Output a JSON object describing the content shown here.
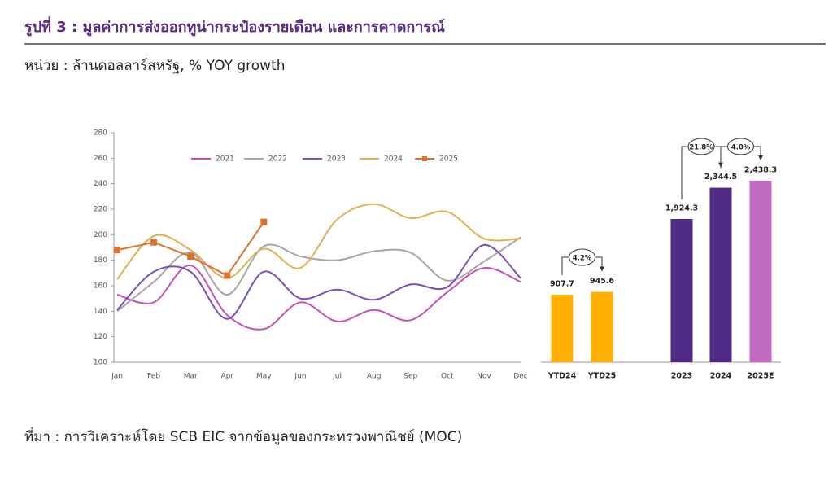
{
  "title": "รูปที่ 3 : มูลค่าการส่งออกทูน่ากระป๋องรายเดือน และการคาดการณ์",
  "unit": "หน่วย : ล้านดอลลาร์สหรัฐ, % YOY growth",
  "source": "ที่มา : การวิเคราะห์โดย SCB EIC จากข้อมูลของกระทรวงพาณิชย์ (MOC)",
  "chart_data": [
    {
      "type": "line",
      "categories": [
        "Jan",
        "Feb",
        "Mar",
        "Apr",
        "May",
        "Jun",
        "Jul",
        "Aug",
        "Sep",
        "Oct",
        "Nov",
        "Dec"
      ],
      "ylim": [
        100,
        280
      ],
      "yticks": [
        100,
        120,
        140,
        160,
        180,
        200,
        220,
        240,
        260,
        280
      ],
      "legend": "top",
      "series": [
        {
          "name": "2021",
          "color": "#c94fb8",
          "values": [
            153,
            147,
            176,
            137,
            126,
            147,
            132,
            141,
            133,
            155,
            174,
            163
          ]
        },
        {
          "name": "2022",
          "color": "#a6a6a6",
          "values": [
            140,
            163,
            186,
            153,
            191,
            183,
            180,
            187,
            186,
            164,
            179,
            198
          ]
        },
        {
          "name": "2023",
          "color": "#7a4fb8",
          "values": [
            141,
            171,
            171,
            134,
            171,
            150,
            157,
            149,
            161,
            159,
            192,
            166
          ]
        },
        {
          "name": "2024",
          "color": "#e0b050",
          "values": [
            165,
            199,
            188,
            166,
            189,
            174,
            212,
            224,
            213,
            218,
            197,
            197
          ]
        },
        {
          "name": "2025",
          "color": "#e0702a",
          "markers": true,
          "values": [
            188,
            194,
            183,
            168,
            210,
            null,
            null,
            null,
            null,
            null,
            null,
            null
          ]
        }
      ]
    },
    {
      "type": "bar",
      "categories": [
        "YTD24",
        "YTD25",
        "2023",
        "2024",
        "2025E"
      ],
      "values": [
        907.7,
        945.6,
        1924.3,
        2344.5,
        2438.3
      ],
      "value_labels": [
        "907.7",
        "945.6",
        "1,924.3",
        "2,344.5",
        "2,438.3"
      ],
      "colors": [
        "#ffb000",
        "#ffb000",
        "#4e2a84",
        "#4e2a84",
        "#c06ac0"
      ],
      "annotations": [
        "4.2%",
        "21.8%",
        "4.0%"
      ]
    }
  ]
}
